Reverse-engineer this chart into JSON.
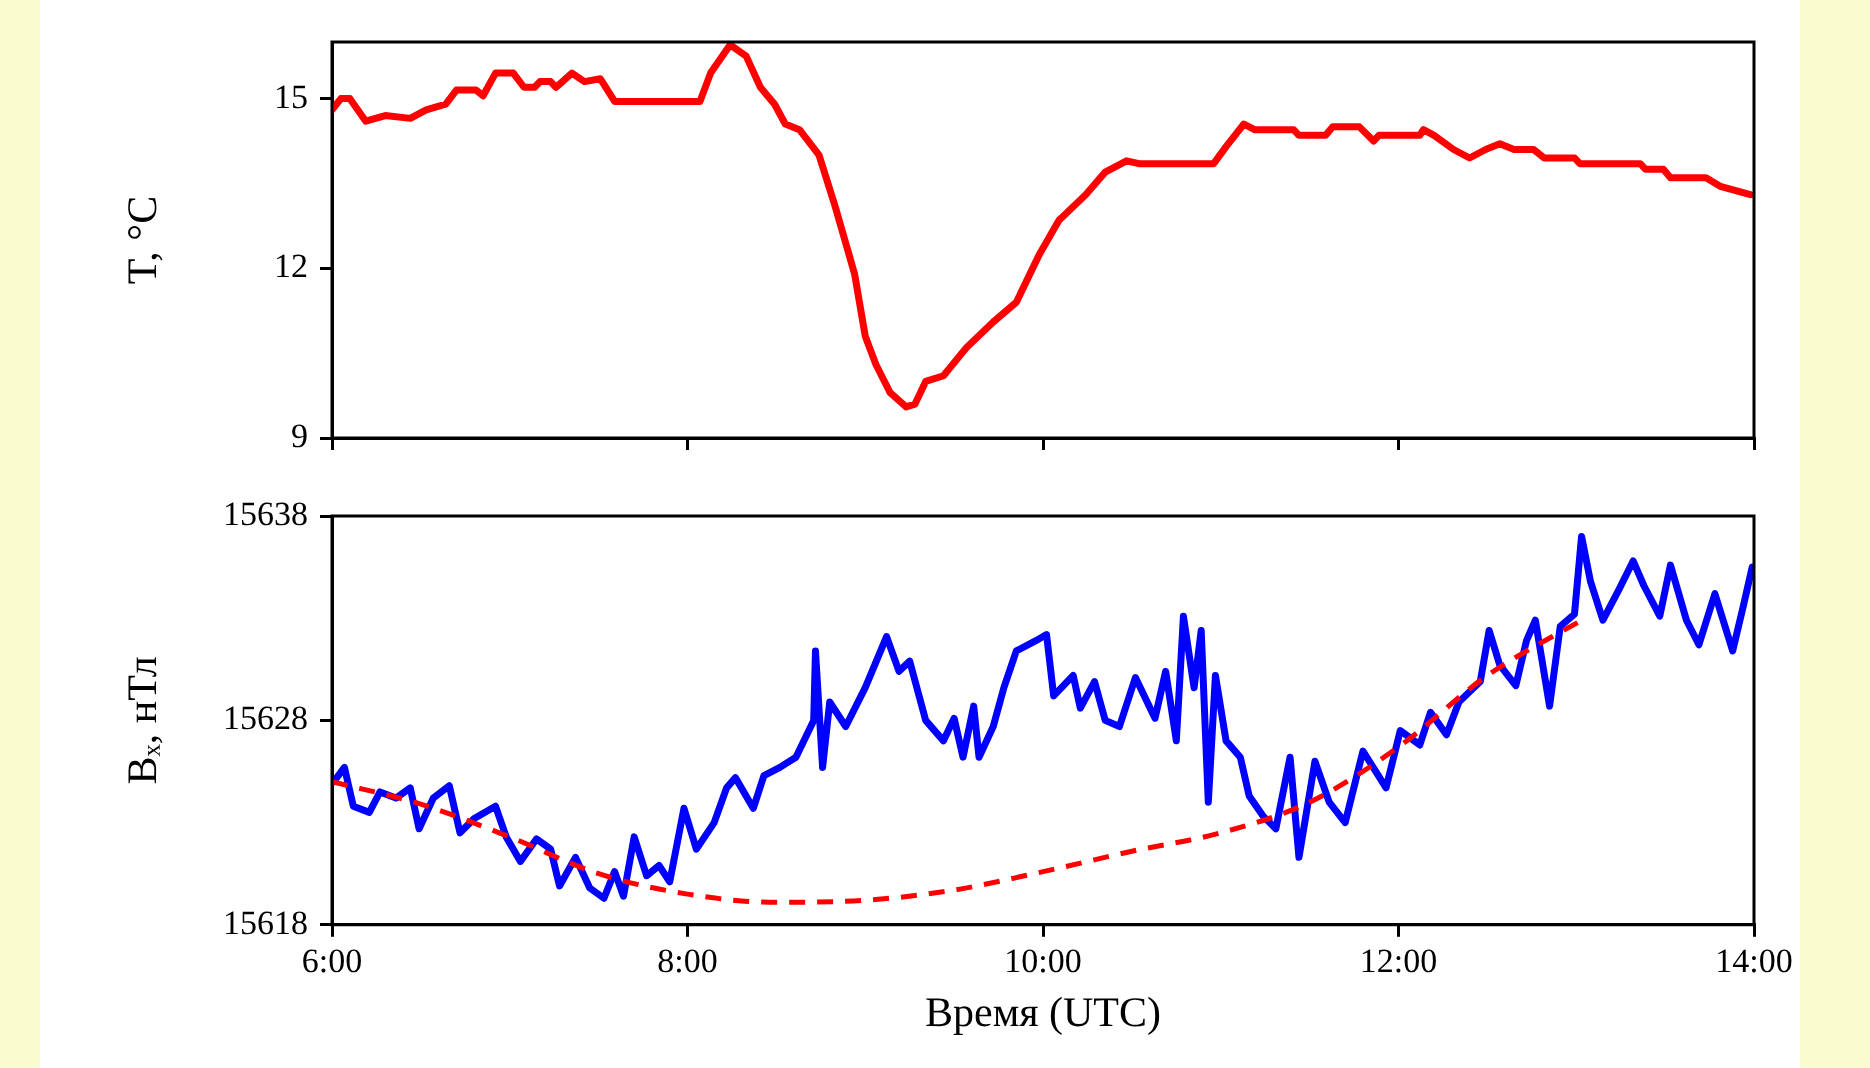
{
  "chart_data": [
    {
      "type": "line",
      "ylabel": "T, °C",
      "xlim": [
        6,
        14
      ],
      "xticks": [
        {
          "value": 6,
          "label": null
        },
        {
          "value": 8,
          "label": null
        },
        {
          "value": 10,
          "label": null
        },
        {
          "value": 12,
          "label": null
        },
        {
          "value": 14,
          "label": null
        }
      ],
      "ylim": [
        9,
        16
      ],
      "yticks": [
        9,
        12,
        15
      ],
      "tick_labels": "y",
      "grid": false,
      "legend": false,
      "marker": "none",
      "series": [
        {
          "color": "#ff0000",
          "line_style": "solid",
          "x": [
            6.0,
            6.05,
            6.1,
            6.19,
            6.3,
            6.44,
            6.53,
            6.64,
            6.7,
            6.81,
            6.85,
            6.92,
            7.02,
            7.08,
            7.14,
            7.17,
            7.23,
            7.26,
            7.35,
            7.42,
            7.51,
            7.59,
            7.84,
            8.07,
            8.13,
            8.24,
            8.33,
            8.41,
            8.49,
            8.55,
            8.63,
            8.74,
            8.83,
            8.94,
            9.0,
            9.06,
            9.14,
            9.23,
            9.28,
            9.34,
            9.44,
            9.57,
            9.72,
            9.85,
            9.98,
            10.09,
            10.24,
            10.35,
            10.47,
            10.54,
            10.96,
            11.03,
            11.13,
            11.19,
            11.41,
            11.44,
            11.59,
            11.63,
            11.78,
            11.86,
            11.89,
            12.12,
            12.14,
            12.2,
            12.31,
            12.4,
            12.49,
            12.57,
            12.65,
            12.76,
            12.82,
            12.99,
            13.02,
            13.36,
            13.39,
            13.49,
            13.53,
            13.73,
            13.81,
            13.98
          ],
          "values": [
            14.8,
            15.0,
            15.0,
            14.6,
            14.7,
            14.65,
            14.8,
            14.9,
            15.15,
            15.15,
            15.05,
            15.45,
            15.45,
            15.2,
            15.2,
            15.3,
            15.3,
            15.2,
            15.45,
            15.3,
            15.35,
            14.95,
            14.95,
            14.95,
            15.45,
            15.95,
            15.75,
            15.2,
            14.9,
            14.55,
            14.45,
            14.0,
            13.1,
            11.9,
            10.8,
            10.3,
            9.8,
            9.55,
            9.6,
            10.0,
            10.1,
            10.6,
            11.05,
            11.4,
            12.25,
            12.85,
            13.3,
            13.7,
            13.9,
            13.85,
            13.85,
            14.15,
            14.55,
            14.45,
            14.45,
            14.35,
            14.35,
            14.5,
            14.5,
            14.25,
            14.35,
            14.35,
            14.45,
            14.35,
            14.1,
            13.95,
            14.1,
            14.2,
            14.1,
            14.1,
            13.95,
            13.95,
            13.85,
            13.85,
            13.75,
            13.75,
            13.6,
            13.6,
            13.45,
            13.3
          ]
        }
      ]
    },
    {
      "type": "line",
      "ylabel": "Bₓ, нТл",
      "xlabel": "Время (UTC)",
      "xlim": [
        6,
        14
      ],
      "xticks": [
        {
          "value": 6,
          "label": "6:00"
        },
        {
          "value": 8,
          "label": "8:00"
        },
        {
          "value": 10,
          "label": "10:00"
        },
        {
          "value": 12,
          "label": "12:00"
        },
        {
          "value": 14,
          "label": "14:00"
        }
      ],
      "ylim": [
        15618,
        15638
      ],
      "yticks": [
        15618,
        15628,
        15638
      ],
      "grid": false,
      "legend": false,
      "marker": "none",
      "series": [
        {
          "color": "#0000ff",
          "line_style": "solid",
          "x": [
            6.01,
            6.07,
            6.12,
            6.21,
            6.27,
            6.36,
            6.44,
            6.49,
            6.57,
            6.66,
            6.72,
            6.8,
            6.92,
            6.98,
            7.06,
            7.15,
            7.23,
            7.28,
            7.37,
            7.45,
            7.53,
            7.59,
            7.64,
            7.7,
            7.77,
            7.84,
            7.9,
            7.98,
            8.05,
            8.15,
            8.22,
            8.27,
            8.37,
            8.43,
            8.52,
            8.61,
            8.71,
            8.72,
            8.76,
            8.8,
            8.89,
            9.0,
            9.12,
            9.19,
            9.25,
            9.34,
            9.44,
            9.5,
            9.55,
            9.61,
            9.64,
            9.72,
            9.78,
            9.85,
            9.96,
            10.02,
            10.06,
            10.17,
            10.21,
            10.29,
            10.35,
            10.43,
            10.52,
            10.63,
            10.69,
            10.75,
            10.79,
            10.85,
            10.89,
            10.93,
            10.97,
            11.03,
            11.11,
            11.16,
            11.24,
            11.31,
            11.39,
            11.44,
            11.53,
            11.61,
            11.7,
            11.8,
            11.93,
            12.01,
            12.12,
            12.18,
            12.27,
            12.34,
            12.46,
            12.51,
            12.57,
            12.66,
            12.72,
            12.77,
            12.85,
            12.91,
            12.99,
            13.03,
            13.08,
            13.15,
            13.24,
            13.32,
            13.38,
            13.47,
            13.53,
            13.62,
            13.69,
            13.78,
            13.88,
            13.94,
            13.99
          ],
          "values": [
            15625.0,
            15625.7,
            15623.8,
            15623.5,
            15624.5,
            15624.2,
            15624.7,
            15622.7,
            15624.2,
            15624.8,
            15622.5,
            15623.2,
            15623.8,
            15622.3,
            15621.1,
            15622.2,
            15621.7,
            15619.9,
            15621.3,
            15619.8,
            15619.3,
            15620.6,
            15619.4,
            15622.3,
            15620.4,
            15620.9,
            15620.1,
            15623.7,
            15621.7,
            15623.0,
            15624.7,
            15625.2,
            15623.7,
            15625.3,
            15625.7,
            15626.2,
            15628.0,
            15631.4,
            15625.7,
            15628.9,
            15627.7,
            15629.6,
            15632.1,
            15630.4,
            15630.9,
            15628.0,
            15627.0,
            15628.1,
            15626.2,
            15628.7,
            15626.2,
            15627.7,
            15629.6,
            15631.4,
            15631.9,
            15632.2,
            15629.2,
            15630.2,
            15628.6,
            15629.9,
            15628.0,
            15627.7,
            15630.1,
            15628.1,
            15630.4,
            15627.0,
            15633.1,
            15629.6,
            15632.4,
            15624.0,
            15630.2,
            15627.0,
            15626.2,
            15624.3,
            15623.3,
            15622.7,
            15626.2,
            15621.3,
            15626.0,
            15624.0,
            15623.0,
            15626.5,
            15624.7,
            15627.5,
            15626.8,
            15628.4,
            15627.3,
            15628.9,
            15629.9,
            15632.4,
            15630.7,
            15629.7,
            15631.9,
            15632.9,
            15628.7,
            15632.6,
            15633.2,
            15637.0,
            15634.8,
            15632.9,
            15634.4,
            15635.8,
            15634.6,
            15633.1,
            15635.6,
            15632.9,
            15631.7,
            15634.2,
            15631.4,
            15633.6,
            15635.5
          ]
        },
        {
          "color": "#ff0000",
          "line_style": "dashed",
          "x": [
            6.0,
            6.5,
            7.0,
            7.5,
            8.0,
            8.5,
            9.0,
            9.5,
            10.0,
            10.5,
            11.0,
            11.5,
            12.0,
            12.5,
            13.05
          ],
          "values": [
            15625.0,
            15623.9,
            15622.3,
            15620.5,
            15619.5,
            15619.1,
            15619.2,
            15619.7,
            15620.6,
            15621.6,
            15622.5,
            15624.0,
            15626.7,
            15630.2,
            15633.0
          ]
        }
      ]
    }
  ]
}
